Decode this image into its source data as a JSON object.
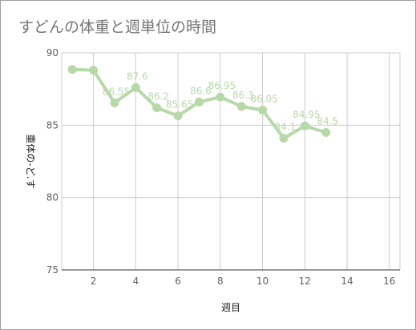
{
  "chart_data": {
    "type": "line",
    "title": "すどんの体重と週単位の時間",
    "xlabel": "週目",
    "ylabel": "重体の-ど.す",
    "xlim": [
      0.5,
      16.5
    ],
    "ylim": [
      75,
      90
    ],
    "xticks": [
      2,
      4,
      6,
      8,
      10,
      12,
      14,
      16
    ],
    "yticks": [
      75,
      80,
      85,
      90
    ],
    "grid": true,
    "line_color": "#b7d9a8",
    "series": [
      {
        "x": [
          1,
          2,
          3,
          4,
          5,
          6,
          7,
          8,
          9,
          10,
          11,
          12,
          13
        ],
        "values": [
          88.85,
          88.8,
          86.55,
          87.6,
          86.2,
          85.65,
          86.6,
          86.95,
          86.3,
          86.05,
          84.1,
          84.95,
          84.5
        ],
        "labels": [
          "",
          "",
          "86.55",
          "87.6",
          "86.2",
          "85.65",
          "86.6",
          "86.95",
          "86.3",
          "86.05",
          "84.1",
          "84.95",
          "84.5"
        ]
      }
    ]
  }
}
